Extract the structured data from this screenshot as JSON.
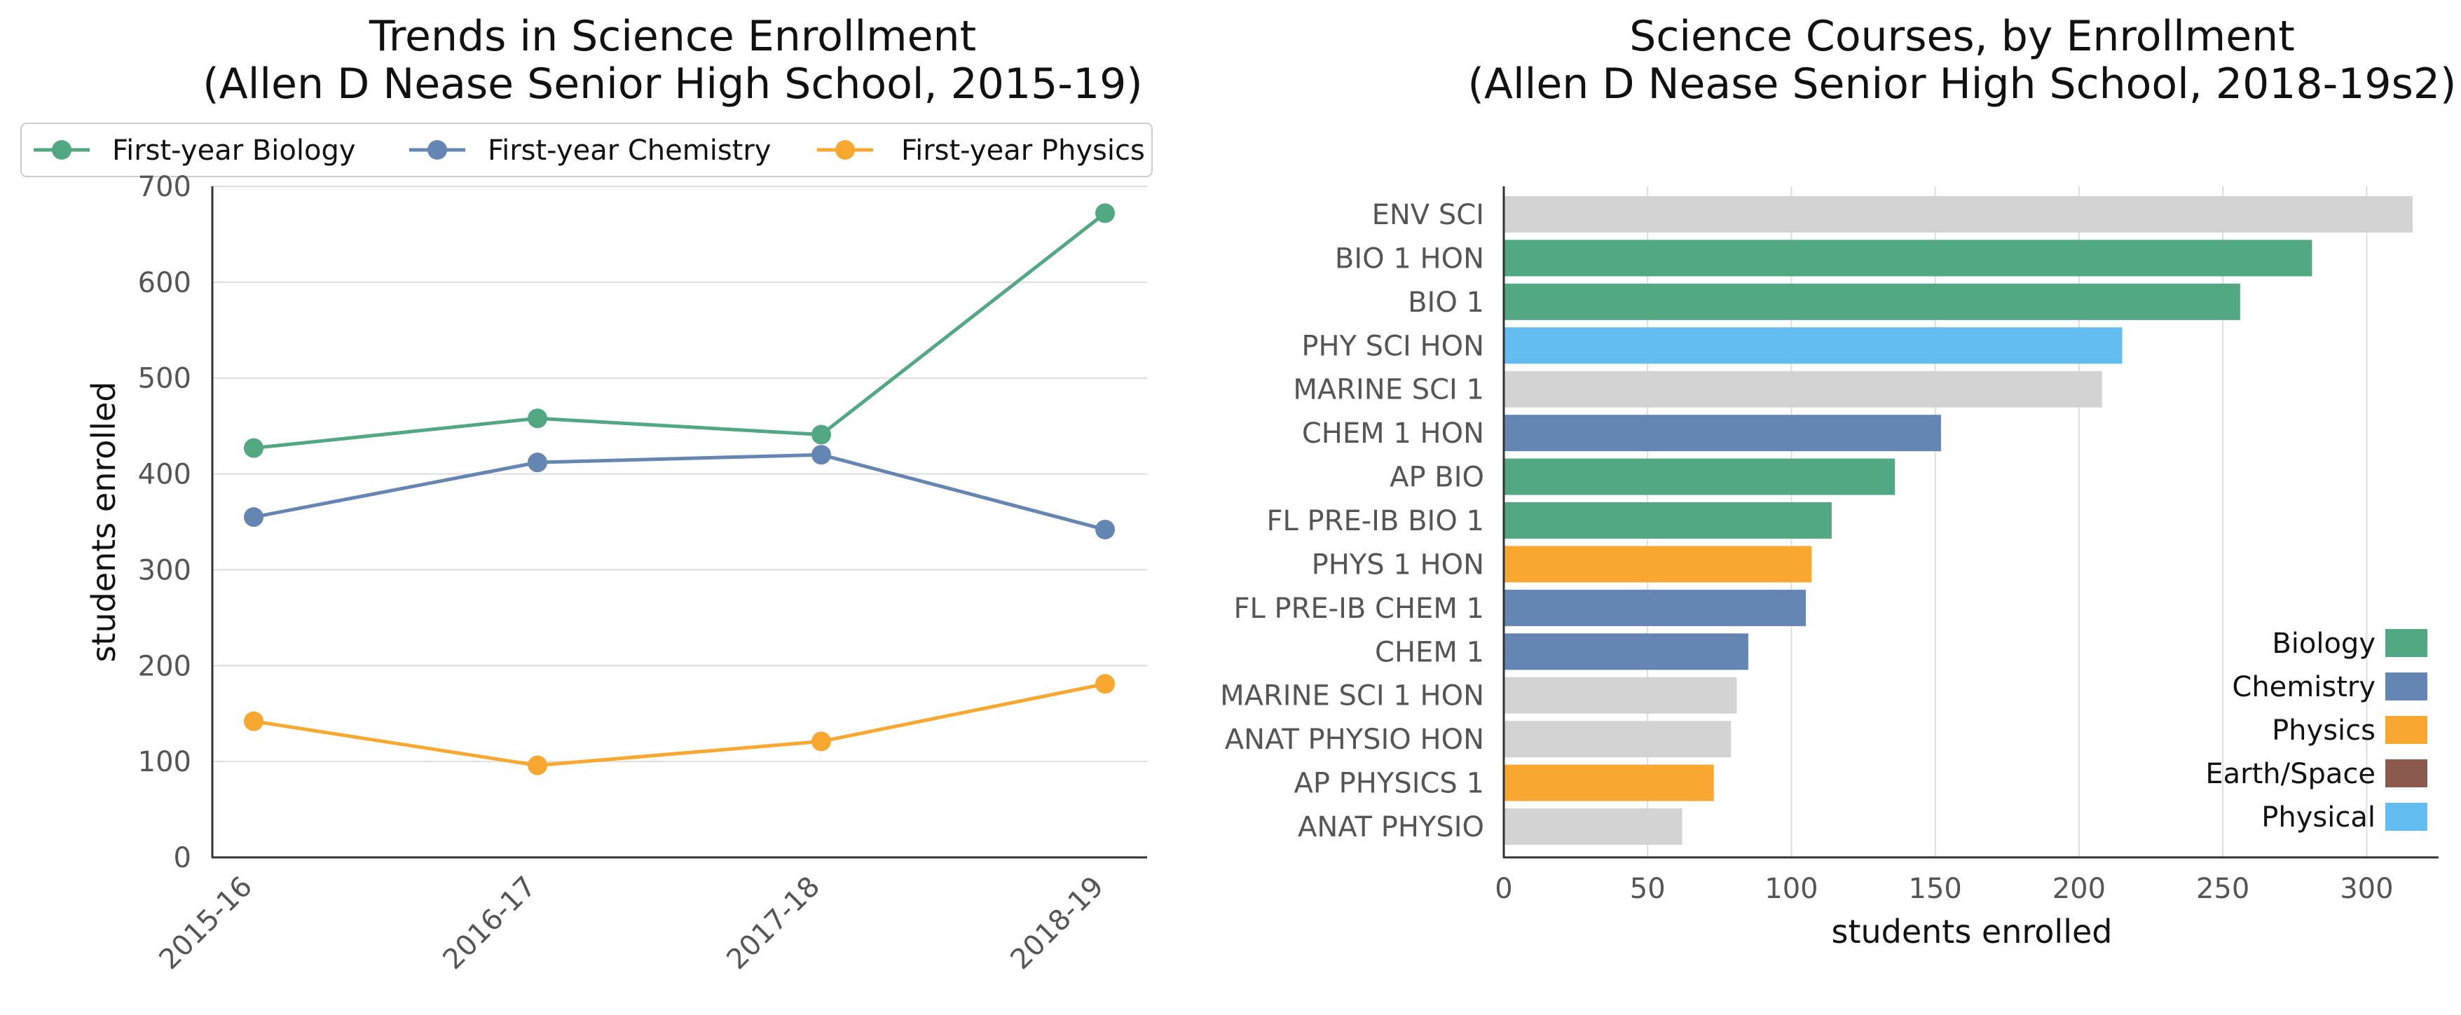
{
  "chart_data": [
    {
      "type": "line",
      "title": "Trends in Science Enrollment",
      "subtitle": "(Allen D Nease Senior High School, 2015-19)",
      "xlabel": "",
      "ylabel": "students enrolled",
      "categories": [
        "2015-16",
        "2016-17",
        "2017-18",
        "2018-19"
      ],
      "ylim": [
        0,
        700
      ],
      "yticks": [
        0,
        100,
        200,
        300,
        400,
        500,
        600,
        700
      ],
      "grid": "horizontal",
      "legend": "top",
      "series": [
        {
          "name": "First-year Biology",
          "color": "#52a883",
          "values": [
            427,
            458,
            441,
            672
          ]
        },
        {
          "name": "First-year Chemistry",
          "color": "#6585b3",
          "values": [
            355,
            412,
            420,
            342
          ]
        },
        {
          "name": "First-year Physics",
          "color": "#f8a830",
          "values": [
            142,
            96,
            121,
            181
          ]
        }
      ]
    },
    {
      "type": "bar",
      "orientation": "horizontal",
      "title": "Science Courses, by Enrollment",
      "subtitle": "(Allen D Nease Senior High School, 2018-19s2)",
      "xlabel": "students enrolled",
      "ylabel": "",
      "xlim": [
        0,
        325
      ],
      "xticks": [
        0,
        50,
        100,
        150,
        200,
        250,
        300
      ],
      "grid": "vertical",
      "legend": "bottom-right",
      "categories": [
        "ENV SCI",
        "BIO 1 HON",
        "BIO 1",
        "PHY SCI HON",
        "MARINE SCI 1",
        "CHEM 1 HON",
        "AP BIO",
        "FL PRE-IB BIO 1",
        "PHYS 1 HON",
        "FL PRE-IB CHEM 1",
        "CHEM 1",
        "MARINE SCI 1 HON",
        "ANAT PHYSIO HON",
        "AP PHYSICS 1",
        "ANAT PHYSIO"
      ],
      "values": [
        316,
        281,
        256,
        215,
        208,
        152,
        136,
        114,
        107,
        105,
        85,
        81,
        79,
        73,
        62
      ],
      "bar_colors": [
        "#d3d3d3",
        "#52a883",
        "#52a883",
        "#63bdf0",
        "#d3d3d3",
        "#6585b3",
        "#52a883",
        "#52a883",
        "#f8a830",
        "#6585b3",
        "#6585b3",
        "#d3d3d3",
        "#d3d3d3",
        "#f8a830",
        "#d3d3d3"
      ],
      "legend_items": [
        {
          "label": "Biology",
          "color": "#52a883"
        },
        {
          "label": "Chemistry",
          "color": "#6585b3"
        },
        {
          "label": "Physics",
          "color": "#f8a830"
        },
        {
          "label": "Earth/Space",
          "color": "#8b5a4e"
        },
        {
          "label": "Physical",
          "color": "#63bdf0"
        }
      ]
    }
  ]
}
